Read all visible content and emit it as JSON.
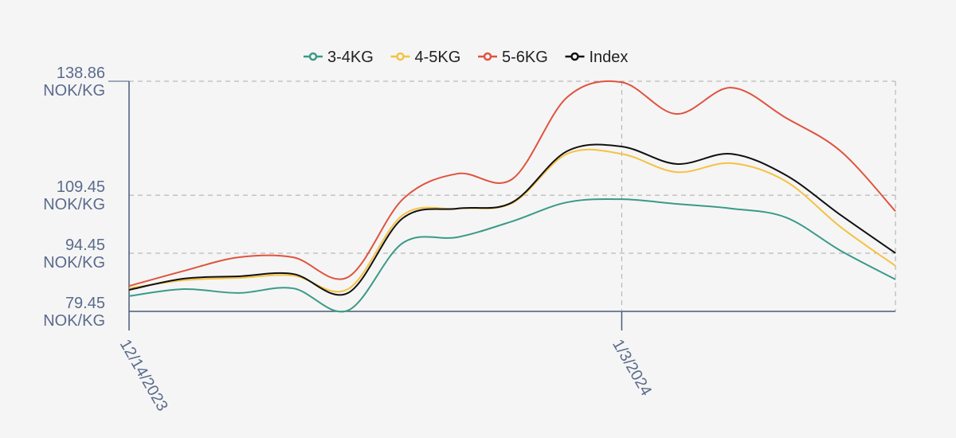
{
  "chart_data": {
    "type": "line",
    "categories": [
      "12/14/2023",
      null,
      null,
      null,
      null,
      null,
      null,
      null,
      null,
      "1/3/2024",
      null,
      null,
      null,
      null,
      null
    ],
    "series": [
      {
        "name": "3-4KG",
        "color": "#3a9a87",
        "values": [
          83.4,
          85.2,
          84.2,
          85.4,
          79.7,
          97.1,
          98.6,
          102.7,
          107.6,
          108.4,
          107.2,
          106.0,
          103.7,
          95.1,
          87.7
        ]
      },
      {
        "name": "4-5KG",
        "color": "#f5c242",
        "values": [
          85.4,
          87.5,
          88.1,
          88.7,
          85.2,
          104.3,
          106.0,
          107.4,
          120.1,
          120.1,
          115.4,
          117.7,
          113.0,
          101.2,
          91.2
        ]
      },
      {
        "name": "5-6KG",
        "color": "#e0533e",
        "values": [
          86.0,
          89.9,
          93.4,
          93.4,
          88.3,
          108.4,
          115.0,
          113.6,
          134.7,
          138.6,
          130.4,
          137.2,
          129.4,
          120.8,
          105.3
        ]
      },
      {
        "name": "Index",
        "color": "#111111",
        "values": [
          85.0,
          87.9,
          88.5,
          89.1,
          84.2,
          103.5,
          106.0,
          107.6,
          120.8,
          122.0,
          117.5,
          120.1,
          114.6,
          104.3,
          94.5
        ]
      }
    ],
    "ylim": [
      79.45,
      138.86
    ],
    "yticks": [
      {
        "value": 79.45,
        "label": "79.45 NOK/KG"
      },
      {
        "value": 94.45,
        "label": "94.45 NOK/KG"
      },
      {
        "value": 109.45,
        "label": "109.45 NOK/KG"
      },
      {
        "value": 138.86,
        "label": "138.86 NOK/KG"
      }
    ],
    "grid": true,
    "legend": "top"
  }
}
